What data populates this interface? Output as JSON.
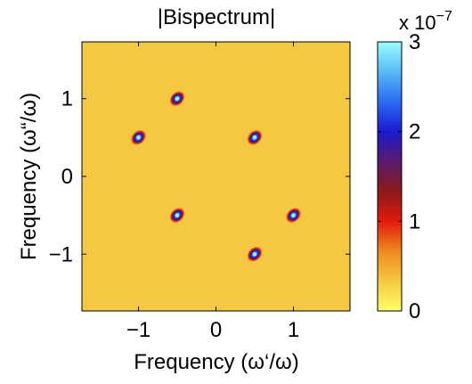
{
  "chart_data": {
    "type": "heatmap",
    "title": "|Bispectrum|",
    "xlabel": "Frequency (ω‘/ω)",
    "ylabel": "Frequency (ω“/ω)",
    "xlim": [
      -1.73,
      1.73
    ],
    "ylim": [
      -1.73,
      1.73
    ],
    "xticks": [
      -1,
      0,
      1
    ],
    "yticks": [
      -1,
      0,
      1
    ],
    "xtick_labels": [
      "−1",
      "0",
      "1"
    ],
    "ytick_labels": [
      "−1",
      "0",
      "1"
    ],
    "grid": false,
    "colorbar": {
      "range": [
        0,
        3
      ],
      "ticks": [
        0,
        1,
        2,
        3
      ],
      "tick_labels": [
        "0",
        "1",
        "2",
        "3"
      ],
      "multiplier_label": "x 10",
      "multiplier_exponent": "−7",
      "colors": [
        "#ffff66",
        "#f5c842",
        "#ee8a1e",
        "#e31a0c",
        "#8b1a1a",
        "#5a1a6e",
        "#1a1ad0",
        "#2a6cf5",
        "#5ab8f5",
        "#99ffff"
      ]
    },
    "peaks": [
      {
        "x": -0.5,
        "y": 1.0,
        "value": 3.0
      },
      {
        "x": -1.0,
        "y": 0.5,
        "value": 3.0
      },
      {
        "x": 0.5,
        "y": 0.5,
        "value": 3.0
      },
      {
        "x": -0.5,
        "y": -0.5,
        "value": 3.0
      },
      {
        "x": 1.0,
        "y": -0.5,
        "value": 3.0
      },
      {
        "x": 0.5,
        "y": -1.0,
        "value": 3.0
      }
    ],
    "background_value": 0.3
  }
}
